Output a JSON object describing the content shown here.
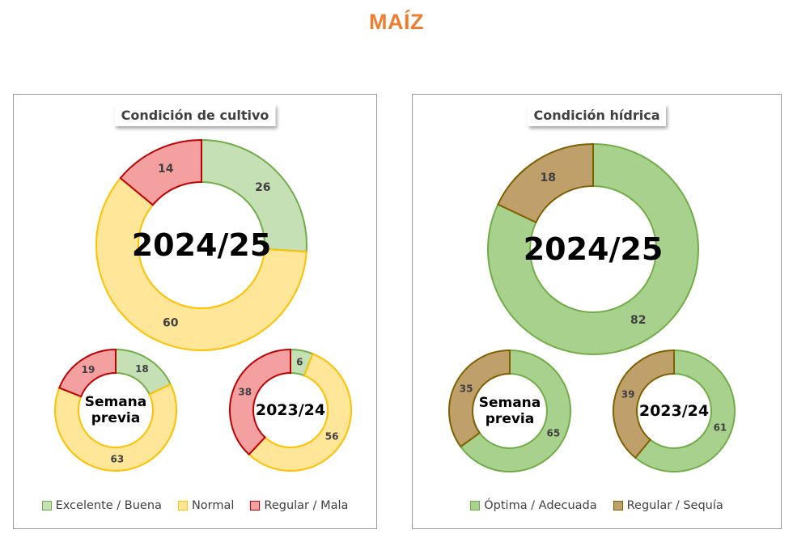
{
  "title": "MAÍZ",
  "colors": {
    "title": "#ED7D31",
    "excelente": {
      "fill": "#C5E0B4",
      "stroke": "#70AD47"
    },
    "normal": {
      "fill": "#FFE699",
      "stroke": "#FFC000"
    },
    "mala": {
      "fill": "#F4A0A0",
      "stroke": "#C00000"
    },
    "optima": {
      "fill": "#A9D18E",
      "stroke": "#70AD47"
    },
    "sequia": {
      "fill": "#BFA06A",
      "stroke": "#7F6000"
    }
  },
  "chart_data": [
    {
      "type": "pie",
      "title": "Condición de cultivo",
      "legend": [
        "Excelente / Buena",
        "Normal",
        "Regular / Mala"
      ],
      "legend_position": "bottom",
      "donuts": [
        {
          "center_label": "2024/25",
          "values": [
            26,
            60,
            14
          ]
        },
        {
          "center_label": "Semana previa",
          "values": [
            18,
            63,
            19
          ]
        },
        {
          "center_label": "2023/24",
          "values": [
            6,
            56,
            38
          ]
        }
      ]
    },
    {
      "type": "pie",
      "title": "Condición hídrica",
      "legend": [
        "Óptima / Adecuada",
        "Regular / Sequía"
      ],
      "legend_position": "bottom",
      "donuts": [
        {
          "center_label": "2024/25",
          "values": [
            82,
            18
          ]
        },
        {
          "center_label": "Semana previa",
          "values": [
            65,
            35
          ]
        },
        {
          "center_label": "2023/24",
          "values": [
            61,
            39
          ]
        }
      ]
    }
  ]
}
